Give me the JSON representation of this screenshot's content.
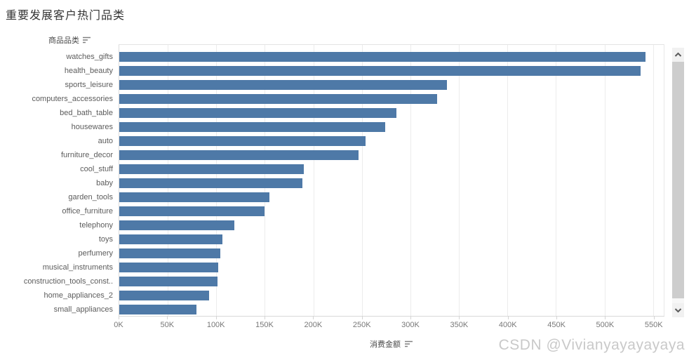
{
  "page": {
    "title": "重要发展客户热门品类",
    "watermark": "CSDN @Vivianyayayayaya"
  },
  "row_header": {
    "label": "商品品类"
  },
  "x_axis_header": {
    "label": "消费金额"
  },
  "icons": {
    "row_sort": "sort-descending-icon",
    "axis_sort": "sort-descending-icon",
    "scroll_up": "chevron-up-icon",
    "scroll_down": "chevron-down-icon"
  },
  "colors": {
    "bar": "#4e79a7",
    "gridline": "#ececec",
    "axis_line": "#d9d9d9",
    "tick_label": "#787878",
    "category_label": "#5c5c5c"
  },
  "chart_data": {
    "type": "bar",
    "orientation": "horizontal",
    "title": "重要发展客户热门品类",
    "row_field": "商品品类",
    "xlabel": "消费金额",
    "value_unit": "K",
    "sort": "descending",
    "grid": true,
    "categories": [
      "watches_gifts",
      "health_beauty",
      "sports_leisure",
      "computers_accessories",
      "bed_bath_table",
      "housewares",
      "auto",
      "furniture_decor",
      "cool_stuff",
      "baby",
      "garden_tools",
      "office_furniture",
      "telephony",
      "toys",
      "perfumery",
      "musical_instruments",
      "construction_tools_const..",
      "home_appliances_2",
      "small_appliances"
    ],
    "values_k": [
      541,
      536,
      337,
      327,
      285,
      273,
      253,
      246,
      190,
      188,
      154,
      149,
      118,
      106,
      104,
      102,
      101,
      92,
      79
    ],
    "x_ticks": [
      "0K",
      "50K",
      "100K",
      "150K",
      "200K",
      "250K",
      "300K",
      "350K",
      "400K",
      "450K",
      "500K",
      "550K"
    ],
    "x_tick_values_k": [
      0,
      50,
      100,
      150,
      200,
      250,
      300,
      350,
      400,
      450,
      500,
      550
    ],
    "xlim_k": [
      0,
      561
    ]
  }
}
